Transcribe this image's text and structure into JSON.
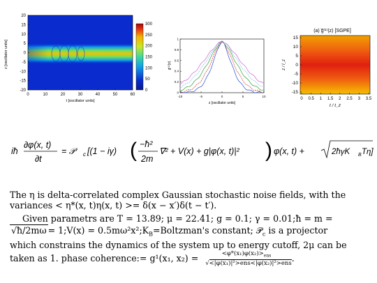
{
  "fig1": {
    "ylabel": "z [oscillator units]",
    "xlabel": "t [oscillator units]",
    "xticks": [
      "0",
      "10",
      "20",
      "30",
      "40",
      "50",
      "60"
    ],
    "yticks": [
      "20",
      "15",
      "10",
      "5",
      "0",
      "-5",
      "-10",
      "-15",
      "-20"
    ],
    "colorbar_ticks": [
      "300",
      "250",
      "200",
      "150",
      "100",
      "50",
      "0"
    ],
    "colors": {
      "low": "#0a2ccf",
      "mid": "#3fd8a0",
      "high": "#f5b400",
      "peak": "#c01010"
    }
  },
  "fig2": {
    "ylabel": "g⁽¹⁾(z)",
    "xlabel": "z [oscillator units]",
    "xticks": [
      "-10",
      "-5",
      "0",
      "5",
      "10"
    ],
    "yticks": [
      "1",
      "0.8",
      "0.6",
      "0.4",
      "0.2",
      "0"
    ],
    "series_colors": [
      "#2050d0",
      "#d03030",
      "#30a030",
      "#80c0e0",
      "#d060d0"
    ]
  },
  "fig3": {
    "title": "(a) g̅⁽¹⁾(z) [SGPE]",
    "ylabel": "z / l_z",
    "xlabel": "t / t_z",
    "xticks": [
      "0",
      "0.5",
      "1",
      "1.5",
      "2",
      "2.5",
      "3",
      "3.5"
    ],
    "yticks": [
      "15",
      "10",
      "5",
      "0",
      "-5",
      "-10",
      "-15"
    ]
  },
  "equation": {
    "lhs_num": "∂φ(x, t)",
    "lhs_den": "∂t",
    "lhs_prefix": "iħ",
    "rhs1": "= 𝒫",
    "rhs_sub": "c",
    "rhs2": "[(1 − iγ)",
    "frac_num": "−ħ²",
    "frac_den": "2m",
    "rhs3": "∇² + V(x) + g|φ(x, t)|²",
    "rhs4": "φ(x, t) +",
    "sqrt": "2ħγK",
    "sqrt_sub": "B",
    "sqrt2": "Tη]"
  },
  "text": {
    "p1a": "The η is delta-correlated complex Gaussian stochastic noise fields, with the",
    "p1b": "variances < η*(x, t)η(x, t) >= δ(x − x′)δ(t − t′).",
    "p2a": "Given parametrs are T = 13.89; μ = 22.41; g = 0.1; γ = 0.01;ħ = m =",
    "p2b_sqrt": "ħ/2mω",
    "p2b": "= 1;V(x) = 0.5mω²x²;K",
    "p2b_sub": "B",
    "p2b2": "=Boltzman's constant; 𝒫",
    "p2b_sub2": "c",
    "p2b3": " is a projector",
    "p2c": "which constrains the dynamics of the system up to energy cutoff, 2μ can be",
    "p2d": "taken as 1. phase coherence:= g¹(x₁, x₂) =",
    "coh_num": "<φ*(x₁)φ(x₂)>",
    "coh_num_sub": "ens",
    "coh_den": "<|φ(x₁)|²>ens<|φ(x₂)|²>ens"
  }
}
